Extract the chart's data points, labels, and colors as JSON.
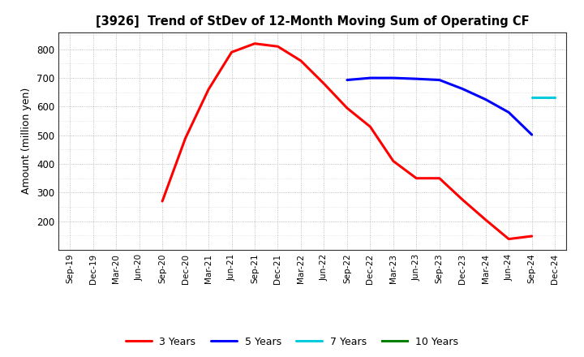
{
  "title": "[3926]  Trend of StDev of 12-Month Moving Sum of Operating CF",
  "ylabel": "Amount (million yen)",
  "background_color": "#ffffff",
  "grid_color": "#999999",
  "series": {
    "3yr": {
      "color": "#ff0000",
      "label": "3 Years",
      "x": [
        "Sep-20",
        "Dec-20",
        "Mar-21",
        "Jun-21",
        "Sep-21",
        "Dec-21",
        "Mar-22",
        "Jun-22",
        "Sep-22",
        "Dec-22",
        "Mar-23",
        "Jun-23",
        "Sep-23",
        "Dec-23",
        "Mar-24",
        "Jun-24",
        "Sep-24"
      ],
      "y": [
        270,
        490,
        660,
        790,
        820,
        810,
        760,
        680,
        595,
        530,
        410,
        350,
        350,
        275,
        205,
        138,
        148
      ]
    },
    "5yr": {
      "color": "#0000ff",
      "label": "5 Years",
      "x": [
        "Sep-22",
        "Dec-22",
        "Mar-23",
        "Jun-23",
        "Sep-23",
        "Dec-23",
        "Mar-24",
        "Jun-24",
        "Sep-24"
      ],
      "y": [
        693,
        700,
        700,
        697,
        693,
        662,
        625,
        580,
        502
      ]
    },
    "7yr": {
      "color": "#00ccdd",
      "label": "7 Years",
      "x": [
        "Sep-24",
        "Dec-24"
      ],
      "y": [
        632,
        632
      ]
    },
    "10yr": {
      "color": "#008000",
      "label": "10 Years",
      "x": [],
      "y": []
    }
  },
  "x_tick_labels": [
    "Sep-19",
    "Dec-19",
    "Mar-20",
    "Jun-20",
    "Sep-20",
    "Dec-20",
    "Mar-21",
    "Jun-21",
    "Sep-21",
    "Dec-21",
    "Mar-22",
    "Jun-22",
    "Sep-22",
    "Dec-22",
    "Mar-23",
    "Jun-23",
    "Sep-23",
    "Dec-23",
    "Mar-24",
    "Jun-24",
    "Sep-24",
    "Dec-24"
  ],
  "ylim": [
    100,
    860
  ],
  "yticks": [
    200,
    300,
    400,
    500,
    600,
    700,
    800
  ],
  "linewidth": 2.2
}
